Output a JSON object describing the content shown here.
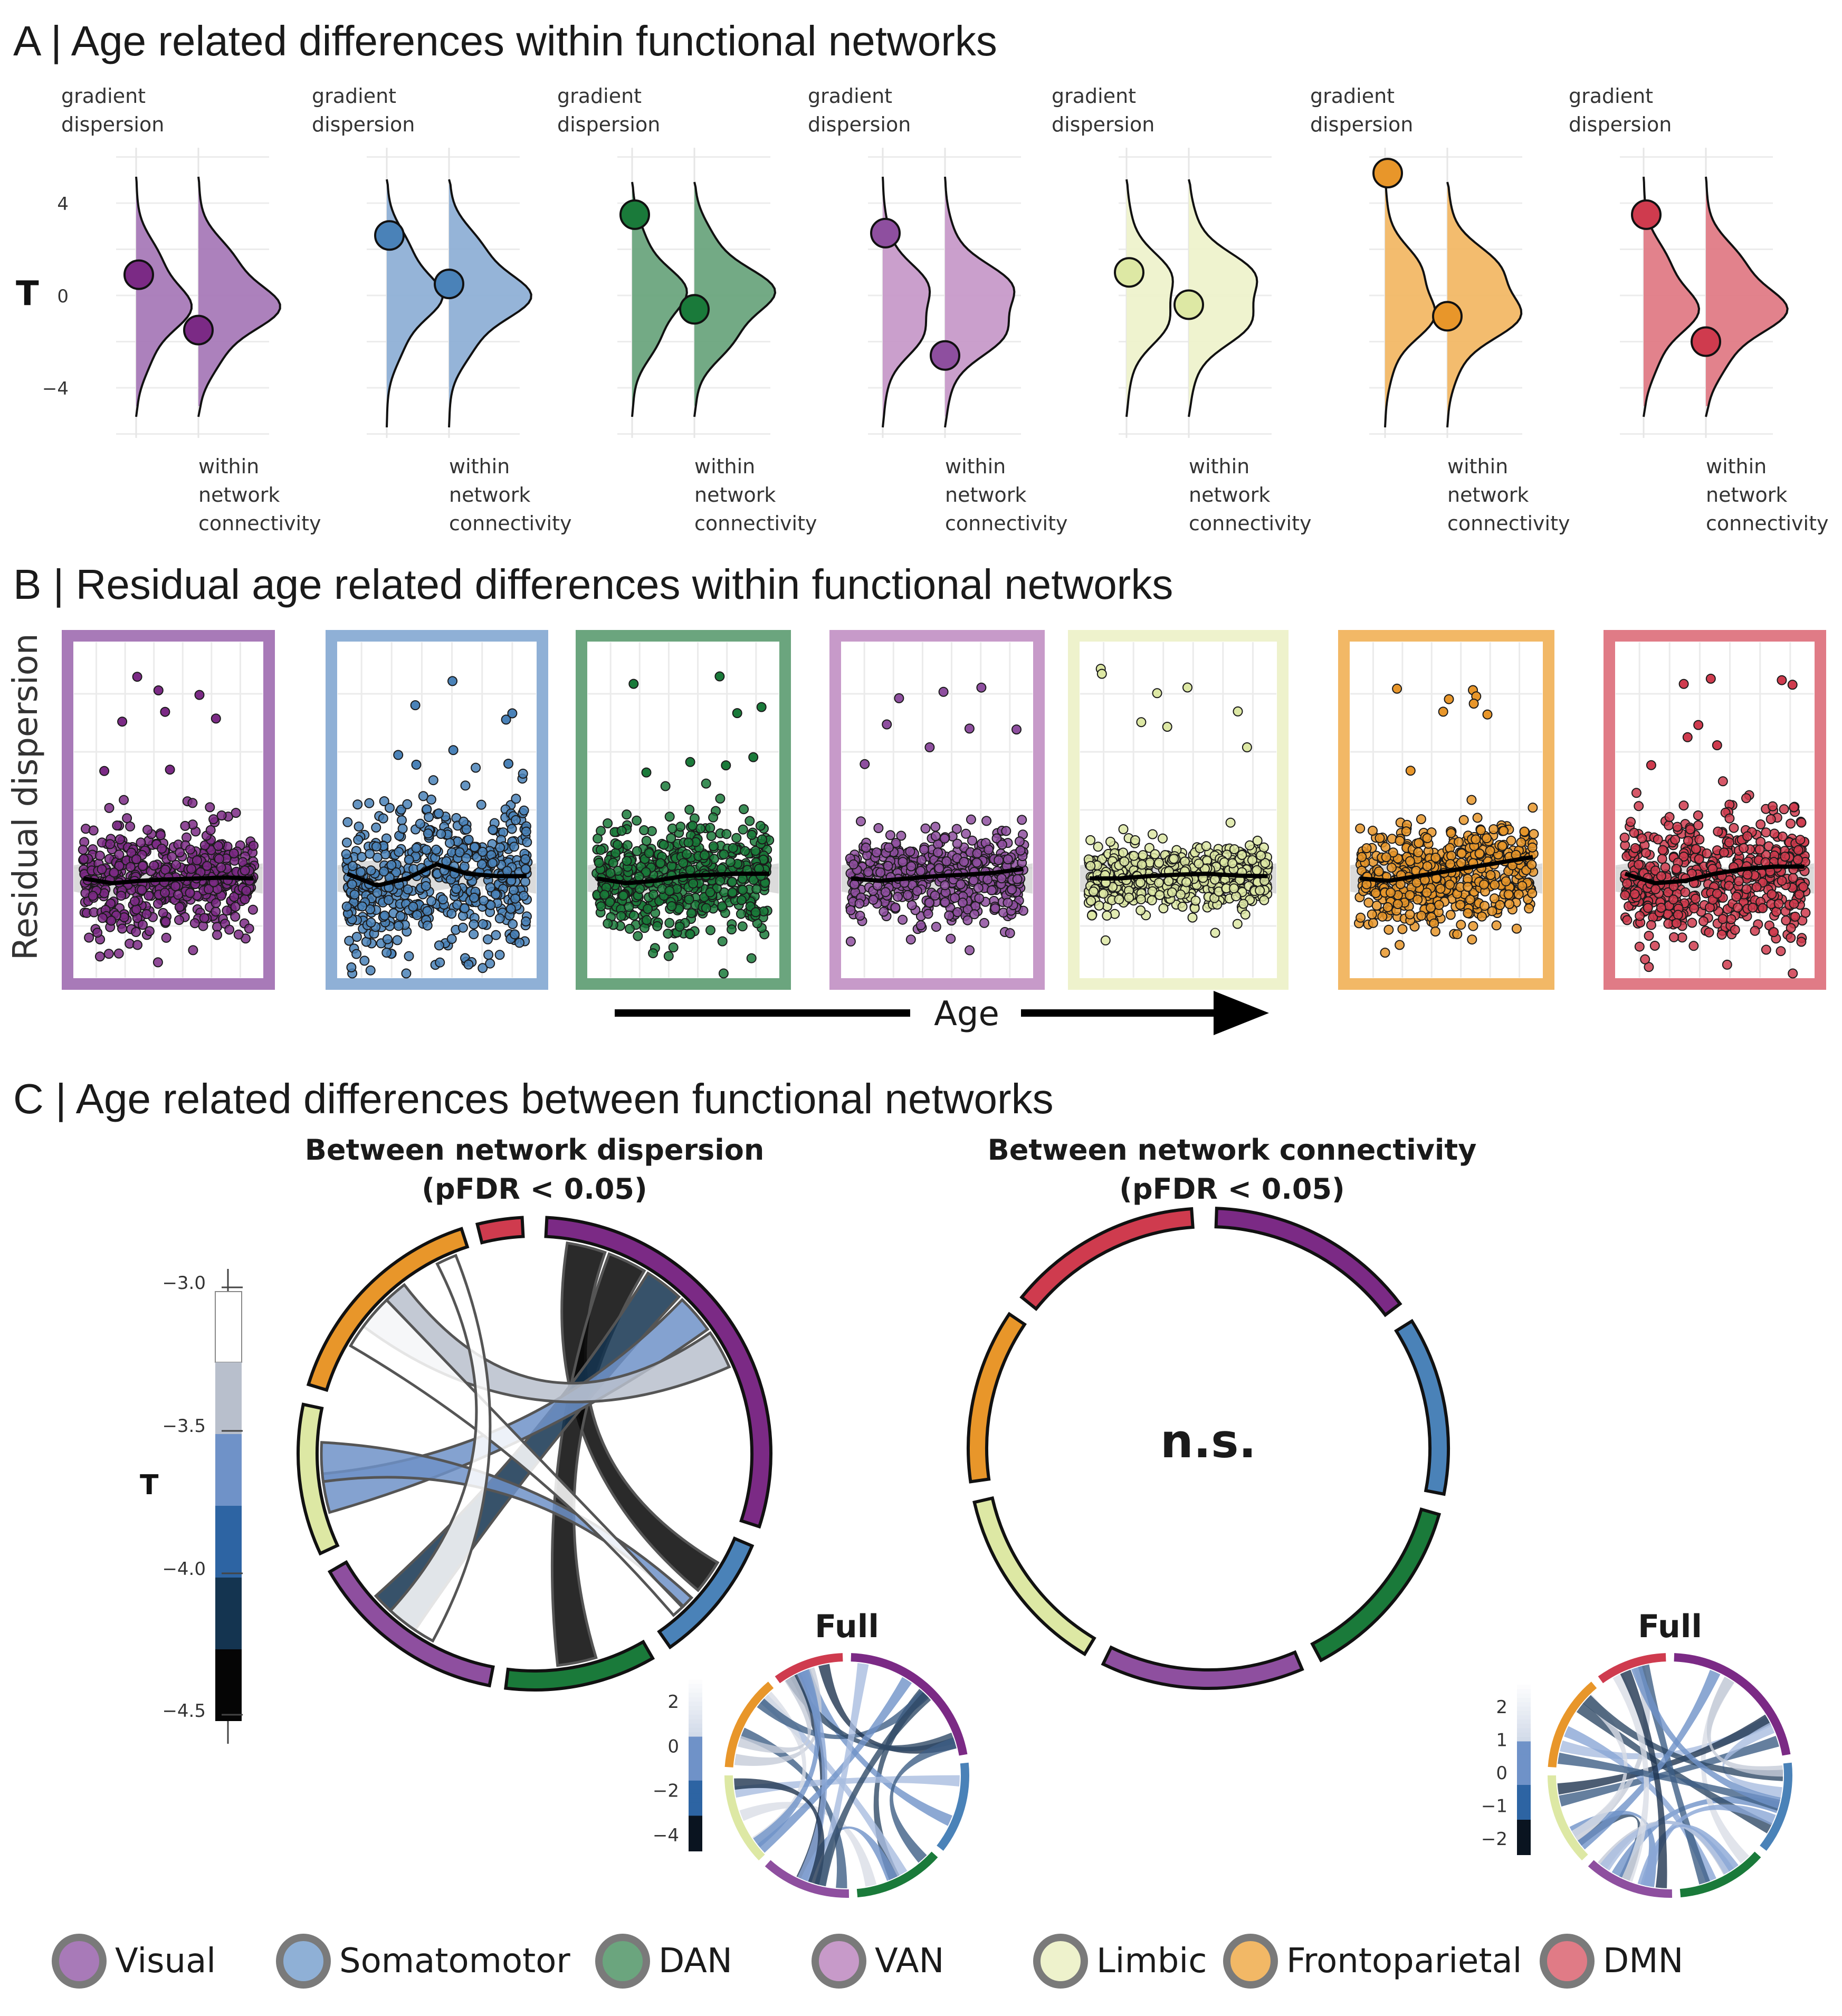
{
  "panel_a": {
    "title": "A | Age related differences within functional networks",
    "y_label": "T",
    "y_ticks": [
      "4",
      "0",
      "−4"
    ],
    "top_label_line1": "gradient",
    "top_label_line2": "dispersion",
    "bottom_label_line1": "within",
    "bottom_label_line2": "network",
    "bottom_label_line3": "connectivity"
  },
  "panel_b": {
    "title": "B | Residual age related differences within functional networks",
    "y_label": "Residual dispersion",
    "x_label": "Age"
  },
  "panel_c": {
    "title": "C | Age related differences between functional networks",
    "left_title_line1": "Between network dispersion",
    "left_title_line2": "(pFDR < 0.05)",
    "right_title_line1": "Between network connectivity",
    "right_title_line2": "(pFDR < 0.05)",
    "ns_label": "n.s.",
    "full_label": "Full",
    "colorbar_label": "T",
    "colorbar_ticks": [
      "−3.0",
      "−3.5",
      "−4.0",
      "−4.5"
    ],
    "full_left_ticks": [
      "2",
      "0",
      "−2",
      "−4"
    ],
    "full_right_ticks": [
      "2",
      "1",
      "0",
      "−1",
      "−2"
    ]
  },
  "legend": [
    {
      "name": "Visual",
      "color": "#a87ab8"
    },
    {
      "name": "Somatomotor",
      "color": "#8fb0d6"
    },
    {
      "name": "DAN",
      "color": "#6ba57e"
    },
    {
      "name": "VAN",
      "color": "#c79ac9"
    },
    {
      "name": "Limbic",
      "color": "#eef2cc"
    },
    {
      "name": "Frontoparietal",
      "color": "#f2b866"
    },
    {
      "name": "DMN",
      "color": "#e07b86"
    }
  ],
  "network_colors": {
    "Visual": "#7b2a85",
    "Somatomotor": "#4a82b8",
    "DAN": "#1a7a3a",
    "VAN": "#8e4f9f",
    "Limbic": "#dde8a4",
    "Frontoparietal": "#e8962a",
    "DMN": "#cf3b4e"
  },
  "chart_data": [
    {
      "type": "scatter",
      "panel": "A",
      "ylabel": "T",
      "ylim": [
        -6,
        6
      ],
      "y_ticks": [
        4,
        0,
        -4
      ],
      "series": [
        {
          "name": "Visual",
          "gradient_dispersion_T": 0.9,
          "within_network_connectivity_T": -1.5
        },
        {
          "name": "Somatomotor",
          "gradient_dispersion_T": 2.6,
          "within_network_connectivity_T": 0.5
        },
        {
          "name": "DAN",
          "gradient_dispersion_T": 3.5,
          "within_network_connectivity_T": -0.6
        },
        {
          "name": "VAN",
          "gradient_dispersion_T": 2.7,
          "within_network_connectivity_T": -2.6
        },
        {
          "name": "Limbic",
          "gradient_dispersion_T": 1.0,
          "within_network_connectivity_T": -0.4
        },
        {
          "name": "Frontoparietal",
          "gradient_dispersion_T": 5.3,
          "within_network_connectivity_T": -0.9
        },
        {
          "name": "DMN",
          "gradient_dispersion_T": 3.5,
          "within_network_connectivity_T": -2.0
        }
      ]
    },
    {
      "type": "scatter",
      "panel": "B",
      "xlabel": "Age",
      "ylabel": "Residual dispersion",
      "series": [
        {
          "name": "Visual",
          "trend": [
            0.0,
            -0.1,
            -0.05,
            -0.02,
            0.0,
            0.02,
            0.0
          ]
        },
        {
          "name": "Somatomotor",
          "trend": [
            0.1,
            -0.15,
            0.0,
            0.3,
            0.1,
            0.05,
            0.05
          ]
        },
        {
          "name": "DAN",
          "trend": [
            0.0,
            -0.1,
            -0.05,
            0.05,
            0.08,
            0.1,
            0.1
          ]
        },
        {
          "name": "VAN",
          "trend": [
            0.0,
            -0.05,
            0.0,
            0.05,
            0.08,
            0.12,
            0.2
          ]
        },
        {
          "name": "Limbic",
          "trend": [
            0.0,
            0.0,
            0.05,
            0.08,
            0.1,
            0.06,
            0.05
          ]
        },
        {
          "name": "Frontoparietal",
          "trend": [
            0.0,
            -0.05,
            0.05,
            0.15,
            0.25,
            0.35,
            0.45
          ]
        },
        {
          "name": "DMN",
          "trend": [
            0.1,
            -0.1,
            -0.05,
            0.1,
            0.2,
            0.25,
            0.25
          ]
        }
      ]
    },
    {
      "type": "chord",
      "panel": "C",
      "title": "Between network dispersion",
      "subtitle": "(pFDR < 0.05)",
      "colorbar": {
        "label": "T",
        "range": [
          -4.5,
          -3.0
        ]
      },
      "links": [
        {
          "from": "Visual",
          "to": "Somatomotor",
          "T": -4.5
        },
        {
          "from": "Visual",
          "to": "DAN",
          "T": -4.5
        },
        {
          "from": "Visual",
          "to": "VAN",
          "T": -4.2
        },
        {
          "from": "Visual",
          "to": "Limbic",
          "T": -3.7
        },
        {
          "from": "Visual",
          "to": "Frontoparietal",
          "T": -3.3
        },
        {
          "from": "Somatomotor",
          "to": "Limbic",
          "T": -3.6
        },
        {
          "from": "Somatomotor",
          "to": "Frontoparietal",
          "T": -3.0
        },
        {
          "from": "Frontoparietal",
          "to": "VAN",
          "T": -3.0
        }
      ]
    },
    {
      "type": "chord",
      "panel": "C",
      "title": "Between network connectivity",
      "subtitle": "(pFDR < 0.05)",
      "annotation": "n.s."
    }
  ]
}
